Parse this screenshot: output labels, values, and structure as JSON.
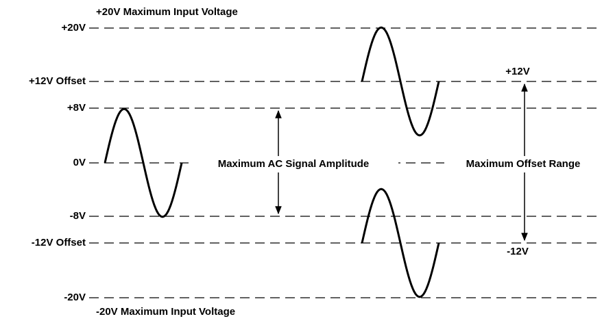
{
  "header": {
    "title": "+20V Maximum Input Voltage"
  },
  "footer": {
    "title": "-20V Maximum Input Voltage"
  },
  "levels": [
    "+20V",
    "+12V Offset",
    "+8V",
    "0V",
    "-8V",
    "-12V Offset",
    "-20V"
  ],
  "annotations": {
    "ac_amplitude": "Maximum AC Signal Amplitude",
    "offset_range": "Maximum Offset Range",
    "offset_top": "+12V",
    "offset_bottom": "-12V"
  }
}
